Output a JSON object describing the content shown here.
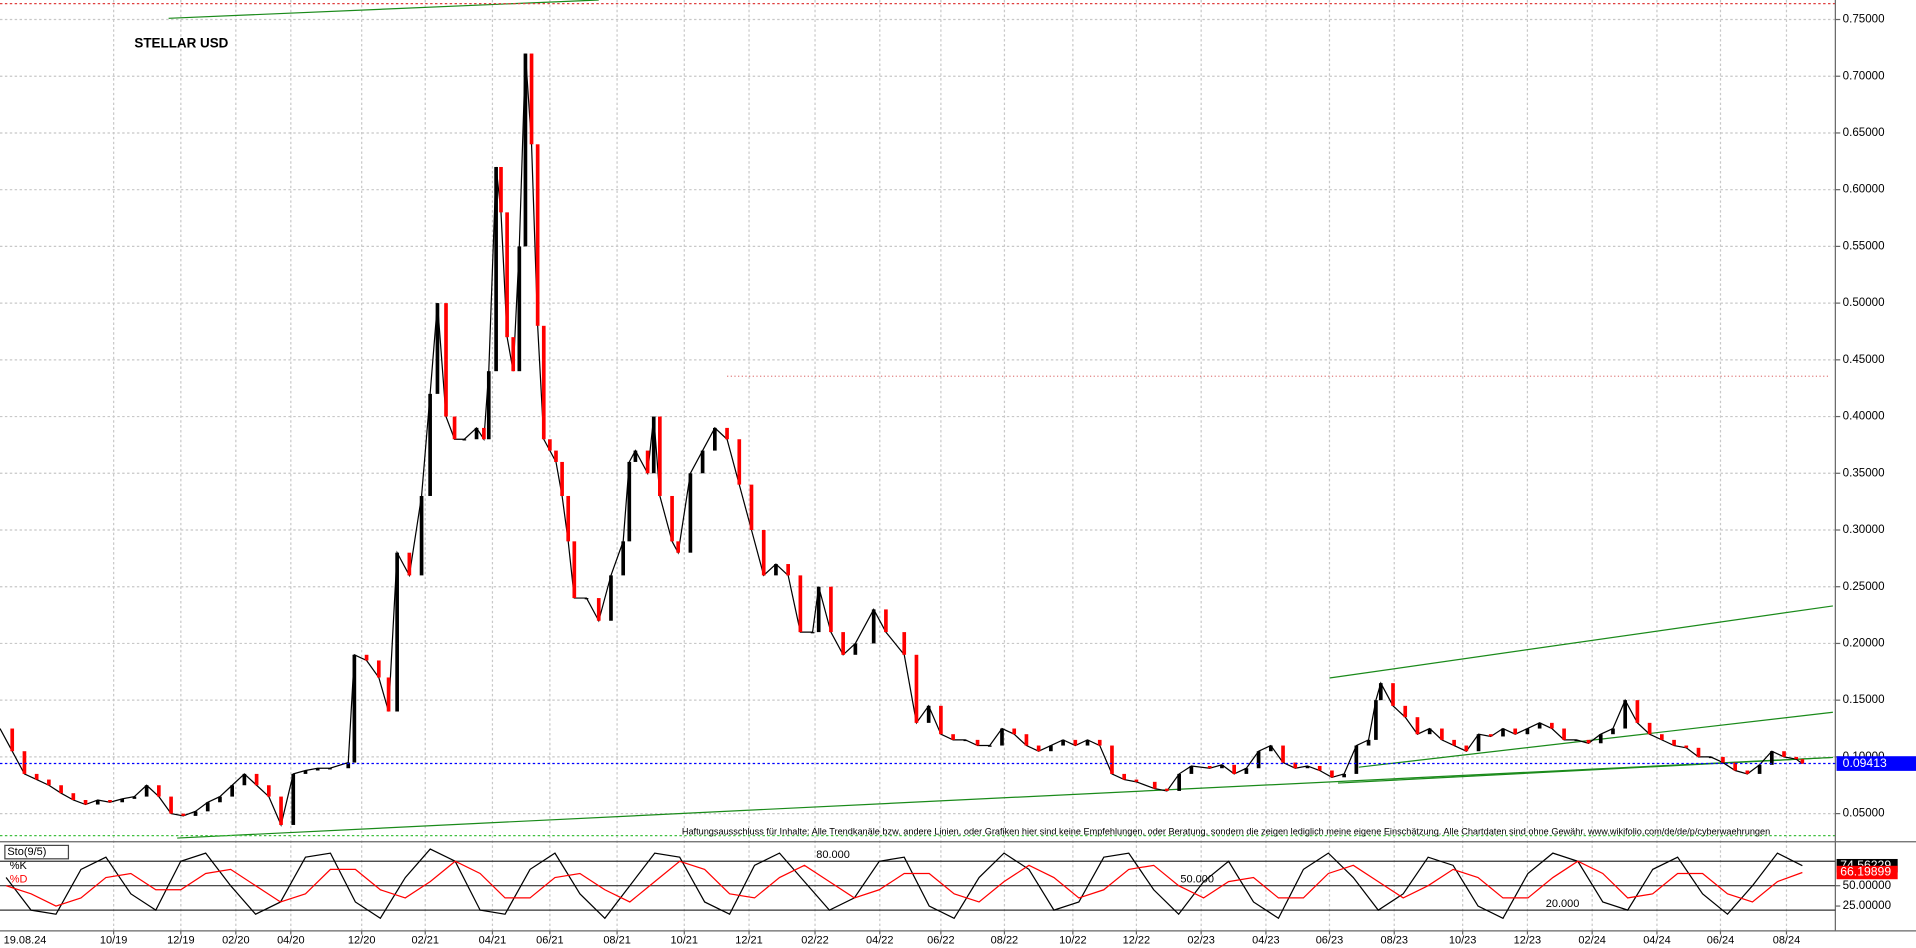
{
  "chart_data": [
    {
      "type": "line",
      "title": "STELLAR USD",
      "date": "19.08.24",
      "x": [
        0,
        10,
        20,
        30,
        40,
        50,
        60,
        70,
        80,
        90,
        100,
        110,
        120,
        130,
        140,
        150,
        160,
        170,
        180,
        190,
        200,
        210,
        220,
        230,
        240,
        250,
        260,
        270,
        285,
        290,
        300,
        310,
        318,
        325,
        335,
        345,
        352,
        358,
        365,
        372,
        380,
        390,
        396,
        400,
        406,
        410,
        415,
        420,
        425,
        430,
        435,
        440,
        445,
        450,
        455,
        460,
        465,
        470,
        480,
        490,
        500,
        510,
        515,
        520,
        530,
        535,
        540,
        550,
        555,
        565,
        575,
        585,
        595,
        605,
        615,
        625,
        635,
        645,
        655,
        665,
        670,
        680,
        690,
        700,
        715,
        725,
        740,
        750,
        760,
        770,
        780,
        790,
        800,
        810,
        820,
        830,
        840,
        850,
        860,
        870,
        880,
        890,
        900,
        910,
        920,
        930,
        945,
        955,
        965,
        975,
        990,
        1000,
        1010,
        1020,
        1030,
        1040,
        1050,
        1060,
        1070,
        1080,
        1090,
        1100,
        1110,
        1120,
        1126,
        1130,
        1140,
        1150,
        1160,
        1170,
        1180,
        1190,
        1200,
        1210,
        1220,
        1230,
        1240,
        1250,
        1260,
        1270,
        1280,
        1290,
        1300,
        1310,
        1320,
        1330,
        1340,
        1350,
        1360,
        1370,
        1380,
        1390,
        1400,
        1410,
        1420,
        1430,
        1440,
        1450,
        1460,
        1470,
        1475
      ],
      "values": [
        0.125,
        0.105,
        0.085,
        0.08,
        0.075,
        0.068,
        0.062,
        0.058,
        0.062,
        0.06,
        0.063,
        0.065,
        0.075,
        0.065,
        0.05,
        0.048,
        0.052,
        0.06,
        0.065,
        0.075,
        0.085,
        0.075,
        0.065,
        0.04,
        0.085,
        0.088,
        0.09,
        0.09,
        0.095,
        0.19,
        0.185,
        0.17,
        0.14,
        0.28,
        0.26,
        0.33,
        0.42,
        0.5,
        0.4,
        0.38,
        0.38,
        0.39,
        0.38,
        0.44,
        0.62,
        0.58,
        0.47,
        0.44,
        0.55,
        0.72,
        0.64,
        0.48,
        0.38,
        0.37,
        0.36,
        0.33,
        0.29,
        0.24,
        0.24,
        0.22,
        0.26,
        0.29,
        0.36,
        0.37,
        0.35,
        0.4,
        0.33,
        0.29,
        0.28,
        0.35,
        0.37,
        0.39,
        0.38,
        0.34,
        0.3,
        0.26,
        0.27,
        0.26,
        0.21,
        0.21,
        0.25,
        0.21,
        0.19,
        0.2,
        0.23,
        0.21,
        0.19,
        0.13,
        0.145,
        0.12,
        0.115,
        0.115,
        0.11,
        0.11,
        0.125,
        0.12,
        0.11,
        0.105,
        0.11,
        0.115,
        0.11,
        0.115,
        0.11,
        0.085,
        0.08,
        0.078,
        0.072,
        0.07,
        0.085,
        0.092,
        0.09,
        0.093,
        0.085,
        0.09,
        0.105,
        0.11,
        0.095,
        0.09,
        0.092,
        0.088,
        0.082,
        0.085,
        0.11,
        0.115,
        0.15,
        0.165,
        0.145,
        0.135,
        0.12,
        0.125,
        0.115,
        0.11,
        0.105,
        0.12,
        0.118,
        0.125,
        0.12,
        0.125,
        0.13,
        0.125,
        0.115,
        0.115,
        0.112,
        0.12,
        0.125,
        0.15,
        0.13,
        0.12,
        0.115,
        0.11,
        0.108,
        0.1,
        0.1,
        0.095,
        0.088,
        0.085,
        0.093,
        0.105,
        0.1,
        0.098,
        0.094
      ],
      "color": "#000000",
      "down_color": "#ff0000",
      "last_price": 0.09413,
      "last_price_color": "#0000ff",
      "xlim": [
        0,
        1502
      ],
      "ylim": [
        0.0263,
        0.7672
      ],
      "xticks": [
        {
          "value": 93,
          "label": "10/19"
        },
        {
          "value": 148,
          "label": "12/19"
        },
        {
          "value": 193,
          "label": "02/20"
        },
        {
          "value": 238,
          "label": "04/20"
        },
        {
          "value": 296,
          "label": "12/20"
        },
        {
          "value": 348,
          "label": "02/21"
        },
        {
          "value": 403,
          "label": "04/21"
        },
        {
          "value": 450,
          "label": "06/21"
        },
        {
          "value": 505,
          "label": "08/21"
        },
        {
          "value": 560,
          "label": "10/21"
        },
        {
          "value": 613,
          "label": "12/21"
        },
        {
          "value": 667,
          "label": "02/22"
        },
        {
          "value": 720,
          "label": "04/22"
        },
        {
          "value": 770,
          "label": "06/22"
        },
        {
          "value": 822,
          "label": "08/22"
        },
        {
          "value": 878,
          "label": "10/22"
        },
        {
          "value": 930,
          "label": "12/22"
        },
        {
          "value": 983,
          "label": "02/23"
        },
        {
          "value": 1036,
          "label": "04/23"
        },
        {
          "value": 1088,
          "label": "06/23"
        },
        {
          "value": 1141,
          "label": "08/23"
        },
        {
          "value": 1197,
          "label": "10/23"
        },
        {
          "value": 1250,
          "label": "12/23"
        },
        {
          "value": 1303,
          "label": "02/24"
        },
        {
          "value": 1356,
          "label": "04/24"
        },
        {
          "value": 1408,
          "label": "06/24"
        },
        {
          "value": 1462,
          "label": "08/24"
        }
      ],
      "yticks": [
        {
          "value": 0.05,
          "label": "0.05000"
        },
        {
          "value": 0.1,
          "label": "0.10000"
        },
        {
          "value": 0.15,
          "label": "0.15000"
        },
        {
          "value": 0.2,
          "label": "0.20000"
        },
        {
          "value": 0.25,
          "label": "0.25000"
        },
        {
          "value": 0.3,
          "label": "0.30000"
        },
        {
          "value": 0.35,
          "label": "0.35000"
        },
        {
          "value": 0.4,
          "label": "0.40000"
        },
        {
          "value": 0.45,
          "label": "0.45000"
        },
        {
          "value": 0.5,
          "label": "0.50000"
        },
        {
          "value": 0.55,
          "label": "0.55000"
        },
        {
          "value": 0.6,
          "label": "0.60000"
        },
        {
          "value": 0.65,
          "label": "0.65000"
        },
        {
          "value": 0.7,
          "label": "0.70000"
        },
        {
          "value": 0.75,
          "label": "0.75000"
        }
      ],
      "grid": true,
      "note": "Haftungsausschluss für Inhalte: Alle Trendkanäle bzw. andere Linien, oder Grafiken hier sind keine Empfehlungen, oder Beratung, sondern die zeigen lediglich meine eigene Einschätzung. Alle Chartdaten sind ohne Gewähr. www.wikifolio.com/de/de/p/cyberwaehrungen"
    },
    {
      "type": "line",
      "title": "Sto(9/5)",
      "series": [
        {
          "name": "%K",
          "color": "#000000",
          "values": [
            60,
            20,
            15,
            70,
            85,
            40,
            20,
            80,
            90,
            50,
            15,
            30,
            85,
            90,
            30,
            10,
            60,
            95,
            80,
            20,
            15,
            70,
            90,
            40,
            10,
            50,
            90,
            85,
            30,
            15,
            75,
            90,
            55,
            20,
            35,
            80,
            85,
            25,
            10,
            60,
            90,
            70,
            20,
            30,
            85,
            90,
            45,
            15,
            55,
            80,
            30,
            10,
            70,
            90,
            60,
            20,
            40,
            85,
            75,
            25,
            10,
            65,
            90,
            80,
            30,
            20,
            70,
            85,
            40,
            15,
            50,
            90,
            74.56229
          ]
        },
        {
          "name": "%D",
          "color": "#ff0000",
          "values": [
            50,
            40,
            25,
            35,
            60,
            65,
            45,
            45,
            65,
            70,
            50,
            30,
            40,
            70,
            70,
            45,
            35,
            55,
            80,
            65,
            35,
            35,
            60,
            65,
            45,
            30,
            55,
            80,
            70,
            40,
            35,
            60,
            75,
            55,
            35,
            45,
            65,
            65,
            40,
            30,
            55,
            75,
            60,
            35,
            45,
            70,
            75,
            50,
            35,
            55,
            60,
            35,
            35,
            65,
            75,
            55,
            35,
            50,
            70,
            60,
            35,
            35,
            60,
            80,
            65,
            35,
            40,
            65,
            65,
            40,
            30,
            55,
            66.19899
          ]
        }
      ],
      "ylim": [
        -5.5,
        102.5
      ],
      "yticks": [
        {
          "value": 25,
          "label": "25.00000"
        },
        {
          "value": 50,
          "label": "50.00000"
        }
      ],
      "levels": [
        {
          "value": 80,
          "label": "80.000"
        },
        {
          "value": 50,
          "label": "50.000"
        },
        {
          "value": 20,
          "label": "20.000"
        }
      ]
    }
  ]
}
